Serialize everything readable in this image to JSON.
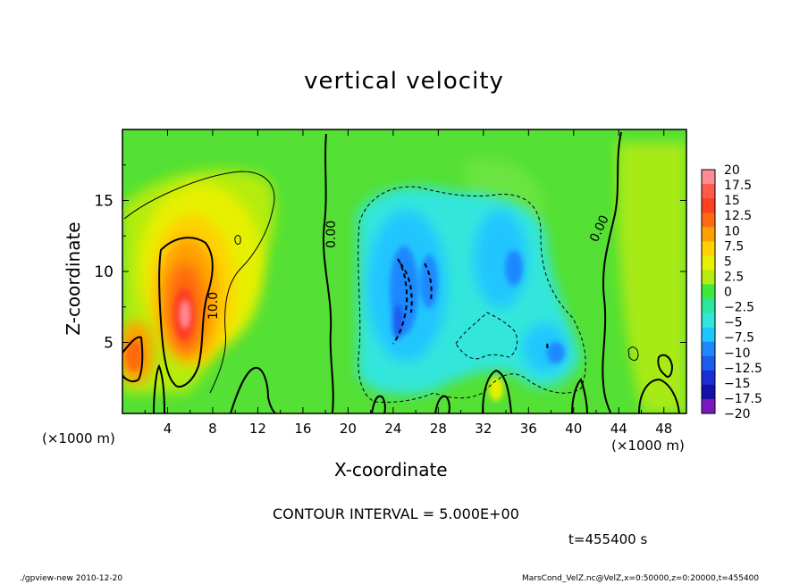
{
  "chart_data": {
    "type": "heatmap",
    "title": "vertical velocity",
    "xlabel": "X-coordinate",
    "ylabel": "Z-coordinate",
    "x_unit_label": "(×1000 m)",
    "x_ticks": [
      4,
      8,
      12,
      16,
      20,
      24,
      28,
      32,
      36,
      40,
      44,
      48
    ],
    "y_ticks": [
      5,
      10,
      15
    ],
    "xlim": [
      0,
      50
    ],
    "ylim": [
      0,
      20
    ],
    "colorbar_levels": [
      "20",
      "17.5",
      "15",
      "12.5",
      "10",
      "7.5",
      "5",
      "2.5",
      "0",
      "-2.5",
      "-5",
      "-7.5",
      "-10",
      "-12.5",
      "-15",
      "-17.5",
      "-20"
    ],
    "colorbar_colors": [
      "#ff8c94",
      "#ff5a4a",
      "#ff4020",
      "#ff6a10",
      "#ffa000",
      "#ffd200",
      "#e6f000",
      "#b4ec10",
      "#3ee83c",
      "#28e8a0",
      "#30e6dc",
      "#20c6ff",
      "#1e88ff",
      "#1e5cf0",
      "#1a2ed8",
      "#1410a8",
      "#7a18c0"
    ],
    "contour_labels": [
      "10.0",
      "0.00",
      "0.00"
    ],
    "contour_interval_text": "CONTOUR INTERVAL = 5.000E+00",
    "time_text": "t=455400 s"
  },
  "footer": {
    "left": "./gpview-new  2010-12-20",
    "right": "MarsCond_VelZ.nc@VelZ,x=0:50000,z=0:20000,t=455400"
  }
}
